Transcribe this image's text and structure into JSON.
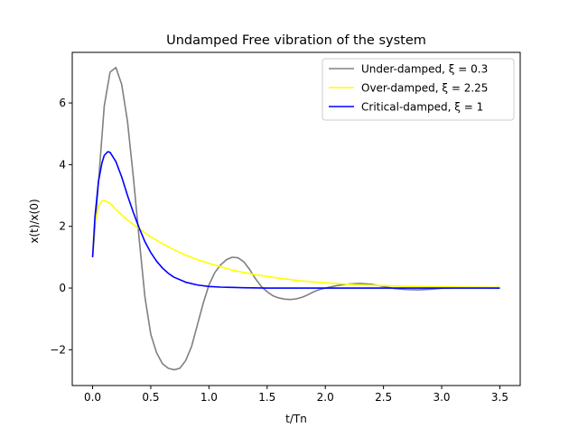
{
  "chart_data": {
    "type": "line",
    "title": "Undamped Free vibration of the system",
    "xlabel": "t/Tn",
    "ylabel": "x(t)/x(0)",
    "xlim": [
      -0.175,
      3.675
    ],
    "ylim": [
      -3.16,
      7.64
    ],
    "xticks": [
      0.0,
      0.5,
      1.0,
      1.5,
      2.0,
      2.5,
      3.0,
      3.5
    ],
    "xtick_labels": [
      "0.0",
      "0.5",
      "1.0",
      "1.5",
      "2.0",
      "2.5",
      "3.0",
      "3.5"
    ],
    "yticks": [
      -2,
      0,
      2,
      4,
      6
    ],
    "ytick_labels": [
      "−2",
      "0",
      "2",
      "4",
      "6"
    ],
    "grid": false,
    "legend_position": "top-right",
    "series": [
      {
        "name": "Under-damped, ξ = 0.3",
        "color": "#808080",
        "x": [
          0.0,
          0.05,
          0.1,
          0.15,
          0.2,
          0.25,
          0.3,
          0.35,
          0.4,
          0.45,
          0.5,
          0.55,
          0.6,
          0.65,
          0.7,
          0.75,
          0.8,
          0.85,
          0.9,
          0.95,
          1.0,
          1.05,
          1.1,
          1.15,
          1.2,
          1.25,
          1.3,
          1.35,
          1.4,
          1.45,
          1.5,
          1.55,
          1.6,
          1.65,
          1.7,
          1.75,
          1.8,
          1.85,
          1.9,
          1.95,
          2.0,
          2.1,
          2.2,
          2.3,
          2.4,
          2.5,
          2.6,
          2.7,
          2.8,
          2.9,
          3.0,
          3.1,
          3.2,
          3.3,
          3.4,
          3.5
        ],
        "y": [
          1.0,
          3.4,
          5.9,
          7.0,
          7.15,
          6.6,
          5.4,
          3.6,
          1.6,
          -0.3,
          -1.5,
          -2.1,
          -2.45,
          -2.6,
          -2.65,
          -2.6,
          -2.35,
          -1.9,
          -1.2,
          -0.5,
          0.1,
          0.5,
          0.75,
          0.92,
          1.0,
          0.98,
          0.85,
          0.6,
          0.3,
          0.05,
          -0.12,
          -0.25,
          -0.32,
          -0.36,
          -0.37,
          -0.35,
          -0.3,
          -0.22,
          -0.12,
          -0.05,
          0.0,
          0.08,
          0.13,
          0.15,
          0.12,
          0.05,
          -0.02,
          -0.05,
          -0.06,
          -0.04,
          -0.01,
          0.01,
          0.02,
          0.02,
          0.01,
          0.0
        ]
      },
      {
        "name": "Over-damped, ξ = 2.25",
        "color": "#ffff00",
        "x": [
          0.0,
          0.02,
          0.05,
          0.08,
          0.1,
          0.15,
          0.2,
          0.3,
          0.4,
          0.5,
          0.6,
          0.7,
          0.8,
          0.9,
          1.0,
          1.2,
          1.4,
          1.6,
          1.8,
          2.0,
          2.25,
          2.5,
          2.75,
          3.0,
          3.25,
          3.5
        ],
        "y": [
          1.0,
          2.1,
          2.65,
          2.82,
          2.84,
          2.75,
          2.55,
          2.2,
          1.92,
          1.66,
          1.44,
          1.24,
          1.07,
          0.92,
          0.8,
          0.58,
          0.43,
          0.32,
          0.23,
          0.17,
          0.11,
          0.08,
          0.05,
          0.04,
          0.03,
          0.02
        ]
      },
      {
        "name": "Critical-damped, ξ = 1",
        "color": "#0000ff",
        "x": [
          0.0,
          0.02,
          0.05,
          0.08,
          0.1,
          0.13,
          0.15,
          0.2,
          0.25,
          0.3,
          0.35,
          0.4,
          0.45,
          0.5,
          0.55,
          0.6,
          0.65,
          0.7,
          0.8,
          0.9,
          1.0,
          1.1,
          1.2,
          1.3,
          1.5,
          2.0,
          2.5,
          3.0,
          3.5
        ],
        "y": [
          1.0,
          2.3,
          3.45,
          4.05,
          4.3,
          4.42,
          4.4,
          4.1,
          3.6,
          3.0,
          2.45,
          1.95,
          1.5,
          1.15,
          0.87,
          0.65,
          0.48,
          0.35,
          0.19,
          0.1,
          0.05,
          0.03,
          0.02,
          0.01,
          0.0,
          0.0,
          0.0,
          0.0,
          0.0
        ]
      }
    ]
  }
}
